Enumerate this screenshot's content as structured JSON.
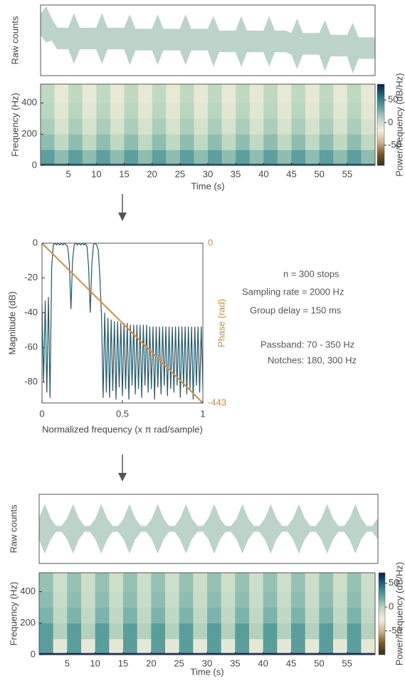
{
  "chart_data": [
    {
      "type": "band",
      "ylabel": "Raw counts",
      "color": "#bcd3c9",
      "xlim": [
        0,
        60
      ],
      "ylim": [
        -1,
        1
      ],
      "x": [
        0,
        1,
        2,
        3,
        4,
        5,
        6,
        7,
        8,
        9,
        10,
        11,
        12,
        13,
        14,
        15,
        16,
        17,
        18,
        19,
        20,
        21,
        22,
        23,
        24,
        25,
        26,
        27,
        28,
        29,
        30,
        31,
        32,
        33,
        34,
        35,
        36,
        37,
        38,
        39,
        40,
        41,
        42,
        43,
        44,
        45,
        46,
        47,
        48,
        49,
        50,
        51,
        52,
        53,
        54,
        55,
        56,
        57,
        58,
        59,
        60
      ],
      "yhigh": [
        0.75,
        0.95,
        0.6,
        0.35,
        0.35,
        0.35,
        0.75,
        0.35,
        0.35,
        0.35,
        0.35,
        0.75,
        0.35,
        0.35,
        0.35,
        0.35,
        0.72,
        0.32,
        0.32,
        0.32,
        0.32,
        0.72,
        0.32,
        0.32,
        0.32,
        0.32,
        0.72,
        0.32,
        0.32,
        0.32,
        0.32,
        0.67,
        0.27,
        0.27,
        0.27,
        0.27,
        0.67,
        0.27,
        0.27,
        0.27,
        0.27,
        0.67,
        0.27,
        0.27,
        0.27,
        0.2,
        0.6,
        0.2,
        0.2,
        0.2,
        0.2,
        0.55,
        0.15,
        0.15,
        0.15,
        0.15,
        0.48,
        0.08,
        0.08,
        0.08,
        0.08
      ],
      "ylow": [
        0.15,
        -0.05,
        0,
        -0.25,
        -0.25,
        -0.25,
        -0.65,
        -0.25,
        -0.25,
        -0.25,
        -0.25,
        -0.65,
        -0.25,
        -0.25,
        -0.25,
        -0.25,
        -0.68,
        -0.28,
        -0.28,
        -0.28,
        -0.28,
        -0.68,
        -0.28,
        -0.28,
        -0.28,
        -0.28,
        -0.68,
        -0.28,
        -0.28,
        -0.28,
        -0.28,
        -0.73,
        -0.33,
        -0.33,
        -0.33,
        -0.33,
        -0.73,
        -0.33,
        -0.33,
        -0.33,
        -0.33,
        -0.73,
        -0.33,
        -0.33,
        -0.33,
        -0.4,
        -0.8,
        -0.4,
        -0.4,
        -0.4,
        -0.4,
        -0.85,
        -0.45,
        -0.45,
        -0.45,
        -0.45,
        -0.92,
        -0.52,
        -0.52,
        -0.52,
        -0.52
      ]
    },
    {
      "type": "heatmap",
      "xlabel": "Time (s)",
      "ylabel": "Frequency (Hz)",
      "clabel": "Power/frequency (dB/Hz)",
      "xlim": [
        0,
        60
      ],
      "xticks": [
        5,
        10,
        15,
        20,
        25,
        30,
        35,
        40,
        45,
        50,
        55
      ],
      "ylim": [
        0,
        520
      ],
      "yticks": [
        0,
        200,
        400
      ],
      "clim": [
        -95,
        85
      ],
      "cticks": [
        50,
        0,
        -50
      ],
      "colormap": [
        "#2f3314",
        "#7a5a26",
        "#cdb48c",
        "#f4eedc",
        "#b9d6c0",
        "#5fa3a0",
        "#1f6d80",
        "#0b1e4e"
      ],
      "xedges": [
        0,
        2.5,
        5,
        7.5,
        10,
        12.5,
        15,
        17.5,
        20,
        22.5,
        25,
        27.5,
        30,
        32.5,
        35,
        37.5,
        40,
        42.5,
        45,
        47.5,
        50,
        52.5,
        55,
        57.5,
        60
      ],
      "yedges": [
        0,
        12,
        100,
        200,
        300,
        400,
        520
      ],
      "z": [
        [
          70,
          70,
          70,
          70,
          70,
          70,
          70,
          70,
          70,
          70,
          70,
          70,
          70,
          70,
          70,
          70,
          70,
          70,
          70,
          70,
          70,
          70,
          70,
          70
        ],
        [
          35,
          20,
          35,
          20,
          35,
          20,
          35,
          20,
          35,
          20,
          35,
          20,
          35,
          20,
          35,
          20,
          35,
          20,
          35,
          20,
          35,
          20,
          35,
          20
        ],
        [
          20,
          5,
          20,
          5,
          20,
          5,
          20,
          5,
          20,
          5,
          20,
          5,
          20,
          5,
          20,
          5,
          20,
          5,
          20,
          5,
          20,
          5,
          20,
          5
        ],
        [
          12,
          -5,
          12,
          -5,
          12,
          -5,
          12,
          -5,
          12,
          -5,
          12,
          -5,
          12,
          -5,
          12,
          -5,
          12,
          -5,
          12,
          -5,
          12,
          -5,
          12,
          -5
        ],
        [
          8,
          -10,
          8,
          -10,
          8,
          -10,
          8,
          -10,
          8,
          -10,
          8,
          -10,
          8,
          -10,
          8,
          -10,
          8,
          -10,
          8,
          -10,
          8,
          -10,
          8,
          -10
        ],
        [
          5,
          -12,
          5,
          -12,
          5,
          -12,
          5,
          -12,
          5,
          -12,
          5,
          -12,
          5,
          -12,
          5,
          -12,
          5,
          -12,
          5,
          -12,
          5,
          -12,
          5,
          -12
        ]
      ]
    },
    {
      "type": "line",
      "xlabel": "Normalized frequency (x π rad/sample)",
      "ylabel": "Magnitude (dB)",
      "y2label": "Phase (rad)",
      "y2color": "#d98c3c",
      "xlim": [
        0,
        1
      ],
      "xticks": [
        0,
        0.5,
        1
      ],
      "ylim": [
        -92,
        0
      ],
      "yticks": [
        0,
        -20,
        -40,
        -60,
        -80
      ],
      "y2lim": [
        -443,
        0
      ],
      "y2ticks": [
        0,
        -443
      ],
      "series": [
        {
          "color": "#1f5a6e",
          "x": [
            0,
            0.01,
            0.02,
            0.03,
            0.04,
            0.05,
            0.06,
            0.07,
            0.08,
            0.09,
            0.1,
            0.11,
            0.12,
            0.13,
            0.14,
            0.15,
            0.16,
            0.17,
            0.18,
            0.19,
            0.2,
            0.21,
            0.22,
            0.23,
            0.24,
            0.25,
            0.26,
            0.27,
            0.28,
            0.29,
            0.3,
            0.31,
            0.32,
            0.33,
            0.34,
            0.35,
            0.36,
            0.37,
            0.38,
            0.39,
            0.4,
            0.41,
            0.42,
            0.43,
            0.44,
            0.45,
            0.46,
            0.47,
            0.48,
            0.49,
            0.5,
            0.51,
            0.52,
            0.53,
            0.54,
            0.55,
            0.56,
            0.57,
            0.58,
            0.59,
            0.6,
            0.61,
            0.62,
            0.63,
            0.64,
            0.65,
            0.66,
            0.67,
            0.68,
            0.69,
            0.7,
            0.71,
            0.72,
            0.73,
            0.74,
            0.75,
            0.76,
            0.77,
            0.78,
            0.79,
            0.8,
            0.81,
            0.82,
            0.83,
            0.84,
            0.85,
            0.86,
            0.87,
            0.88,
            0.89,
            0.9,
            0.91,
            0.92,
            0.93,
            0.94,
            0.95,
            0.96,
            0.97,
            0.98,
            0.99,
            1
          ],
          "values": [
            -35,
            -80,
            -33,
            -86,
            -31,
            -89,
            -14,
            -1,
            0,
            -1,
            0,
            -1,
            0,
            -1,
            0,
            -1,
            -2,
            -12,
            -38,
            -10,
            -1,
            0,
            -1,
            0,
            -1,
            0,
            -1,
            0,
            -2,
            -14,
            -40,
            -12,
            -1,
            0,
            -1,
            -4,
            -20,
            -42,
            -89,
            -40,
            -86,
            -43,
            -89,
            -44,
            -85,
            -45,
            -90,
            -45,
            -83,
            -46,
            -88,
            -46,
            -84,
            -46,
            -90,
            -47,
            -82,
            -47,
            -87,
            -47,
            -84,
            -47,
            -89,
            -47,
            -82,
            -47,
            -86,
            -48,
            -84,
            -48,
            -90,
            -48,
            -83,
            -48,
            -87,
            -48,
            -82,
            -48,
            -88,
            -48,
            -84,
            -48,
            -86,
            -48,
            -82,
            -48,
            -89,
            -48,
            -83,
            -48,
            -87,
            -48,
            -84,
            -48,
            -90,
            -48,
            -82,
            -48,
            -86,
            -48,
            -84
          ]
        },
        {
          "color": "#d98c3c",
          "axis": "y2",
          "x": [
            0,
            1
          ],
          "values": [
            0,
            -443
          ]
        }
      ],
      "annotations": [
        "n = 300 stops",
        "Sampling rate = 2000 Hz",
        "Group delay = 150 ms",
        "Passband: 70 - 350 Hz",
        "Notches: 180, 300 Hz"
      ]
    },
    {
      "type": "band",
      "ylabel": "Raw counts",
      "color": "#bcd3c9",
      "xlim": [
        0,
        60
      ],
      "ylim": [
        -1,
        1
      ],
      "x": [
        0,
        1,
        2,
        3,
        4,
        5,
        6,
        7,
        8,
        9,
        10,
        11,
        12,
        13,
        14,
        15,
        16,
        17,
        18,
        19,
        20,
        21,
        22,
        23,
        24,
        25,
        26,
        27,
        28,
        29,
        30,
        31,
        32,
        33,
        34,
        35,
        36,
        37,
        38,
        39,
        40,
        41,
        42,
        43,
        44,
        45,
        46,
        47,
        48,
        49,
        50,
        51,
        52,
        53,
        54,
        55,
        56,
        57,
        58,
        59,
        60
      ],
      "yhigh": [
        0.3,
        0.7,
        0.3,
        0.08,
        0.08,
        0.3,
        0.7,
        0.3,
        0.08,
        0.08,
        0.3,
        0.7,
        0.3,
        0.08,
        0.08,
        0.3,
        0.7,
        0.3,
        0.08,
        0.08,
        0.3,
        0.7,
        0.3,
        0.08,
        0.08,
        0.3,
        0.7,
        0.3,
        0.08,
        0.08,
        0.3,
        0.7,
        0.3,
        0.08,
        0.08,
        0.3,
        0.7,
        0.3,
        0.08,
        0.08,
        0.3,
        0.7,
        0.3,
        0.08,
        0.08,
        0.3,
        0.7,
        0.3,
        0.08,
        0.08,
        0.3,
        0.7,
        0.3,
        0.08,
        0.08,
        0.3,
        0.7,
        0.3,
        0.08,
        0.08,
        0.3
      ],
      "ylow": [
        -0.3,
        -0.7,
        -0.3,
        -0.08,
        -0.08,
        -0.3,
        -0.7,
        -0.3,
        -0.08,
        -0.08,
        -0.3,
        -0.7,
        -0.3,
        -0.08,
        -0.08,
        -0.3,
        -0.7,
        -0.3,
        -0.08,
        -0.08,
        -0.3,
        -0.7,
        -0.3,
        -0.08,
        -0.08,
        -0.3,
        -0.7,
        -0.3,
        -0.08,
        -0.08,
        -0.3,
        -0.7,
        -0.3,
        -0.08,
        -0.08,
        -0.3,
        -0.7,
        -0.3,
        -0.08,
        -0.08,
        -0.3,
        -0.7,
        -0.3,
        -0.08,
        -0.08,
        -0.3,
        -0.7,
        -0.3,
        -0.08,
        -0.08,
        -0.3,
        -0.7,
        -0.3,
        -0.08,
        -0.08,
        -0.3,
        -0.7,
        -0.3,
        -0.08,
        -0.08,
        -0.3
      ]
    },
    {
      "type": "heatmap",
      "xlabel": "Time (s)",
      "ylabel": "Frequency (Hz)",
      "clabel": "Power/frequency (dB/Hz)",
      "xlim": [
        0,
        60
      ],
      "xticks": [
        5,
        10,
        15,
        20,
        25,
        30,
        35,
        40,
        45,
        50,
        55
      ],
      "ylim": [
        0,
        520
      ],
      "yticks": [
        0,
        200,
        400
      ],
      "clim": [
        -100,
        72
      ],
      "cticks": [
        50,
        0,
        -50
      ],
      "colormap": [
        "#2f3314",
        "#7a5a26",
        "#cdb48c",
        "#f4eedc",
        "#b9d6c0",
        "#5fa3a0",
        "#1f6d80",
        "#0b1e4e"
      ],
      "xedges": [
        0,
        2.5,
        5,
        7.5,
        10,
        12.5,
        15,
        17.5,
        20,
        22.5,
        25,
        27.5,
        30,
        32.5,
        35,
        37.5,
        40,
        42.5,
        45,
        47.5,
        50,
        52.5,
        55,
        57.5,
        60
      ],
      "yedges": [
        0,
        12,
        100,
        200,
        300,
        400,
        520
      ],
      "z": [
        [
          70,
          70,
          70,
          70,
          70,
          70,
          70,
          70,
          70,
          70,
          70,
          70,
          70,
          70,
          70,
          70,
          70,
          70,
          70,
          70,
          70,
          70,
          70,
          70
        ],
        [
          25,
          -20,
          25,
          -20,
          25,
          -20,
          25,
          -20,
          25,
          -20,
          25,
          -20,
          25,
          -20,
          25,
          -20,
          25,
          -20,
          25,
          -20,
          25,
          -20,
          25,
          -20
        ],
        [
          25,
          0,
          25,
          0,
          25,
          0,
          25,
          0,
          25,
          0,
          25,
          0,
          25,
          0,
          25,
          0,
          25,
          0,
          25,
          0,
          25,
          0,
          25,
          0
        ],
        [
          15,
          -5,
          15,
          -5,
          15,
          -5,
          15,
          -5,
          15,
          -5,
          15,
          -5,
          15,
          -5,
          15,
          -5,
          15,
          -5,
          15,
          -5,
          15,
          -5,
          15,
          -5
        ],
        [
          10,
          -8,
          10,
          -8,
          10,
          -8,
          10,
          -8,
          10,
          -8,
          10,
          -8,
          10,
          -8,
          10,
          -8,
          10,
          -8,
          10,
          -8,
          10,
          -8,
          10,
          -8
        ],
        [
          8,
          -10,
          8,
          -10,
          8,
          -10,
          8,
          -10,
          8,
          -10,
          8,
          -10,
          8,
          -10,
          8,
          -10,
          8,
          -10,
          8,
          -10,
          8,
          -10,
          8,
          -10
        ]
      ]
    }
  ]
}
